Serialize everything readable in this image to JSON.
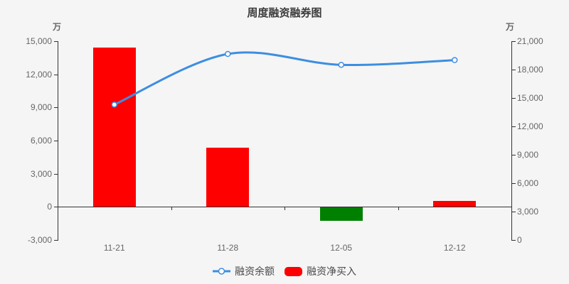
{
  "chart_data": {
    "type": "combo-bar-line",
    "title": "周度融资融券图",
    "categories": [
      "11-21",
      "11-28",
      "12-05",
      "12-12"
    ],
    "series": [
      {
        "name": "融资余额",
        "type": "line",
        "axis": "right",
        "smooth": true,
        "values": [
          14300,
          19650,
          18500,
          19000
        ]
      },
      {
        "name": "融资净买入",
        "type": "bar",
        "axis": "left",
        "values": [
          14400,
          5350,
          -1200,
          560
        ]
      }
    ],
    "left_axis": {
      "unit": "万",
      "min": -3000,
      "max": 15000,
      "interval": 3000,
      "labels": [
        "-3,000",
        "0",
        "3,000",
        "6,000",
        "9,000",
        "12,000",
        "15,000"
      ]
    },
    "right_axis": {
      "unit": "万",
      "min": 0,
      "max": 21000,
      "interval": 3000,
      "labels": [
        "0",
        "3,000",
        "6,000",
        "9,000",
        "12,000",
        "15,000",
        "18,000",
        "21,000"
      ]
    },
    "legend": [
      "融资余额",
      "融资净买入"
    ],
    "legend_position": "bottom",
    "grid": false
  },
  "colors": {
    "background": "#f5f5f5",
    "line": "#3d8ee0",
    "marker_fill": "#ffffff",
    "bar_positive": "#ff0000",
    "bar_negative": "#008000",
    "axis": "#333333",
    "tick_label": "#666666",
    "title_text": "#3c3c3c",
    "legend_text": "#4a4a4a"
  }
}
